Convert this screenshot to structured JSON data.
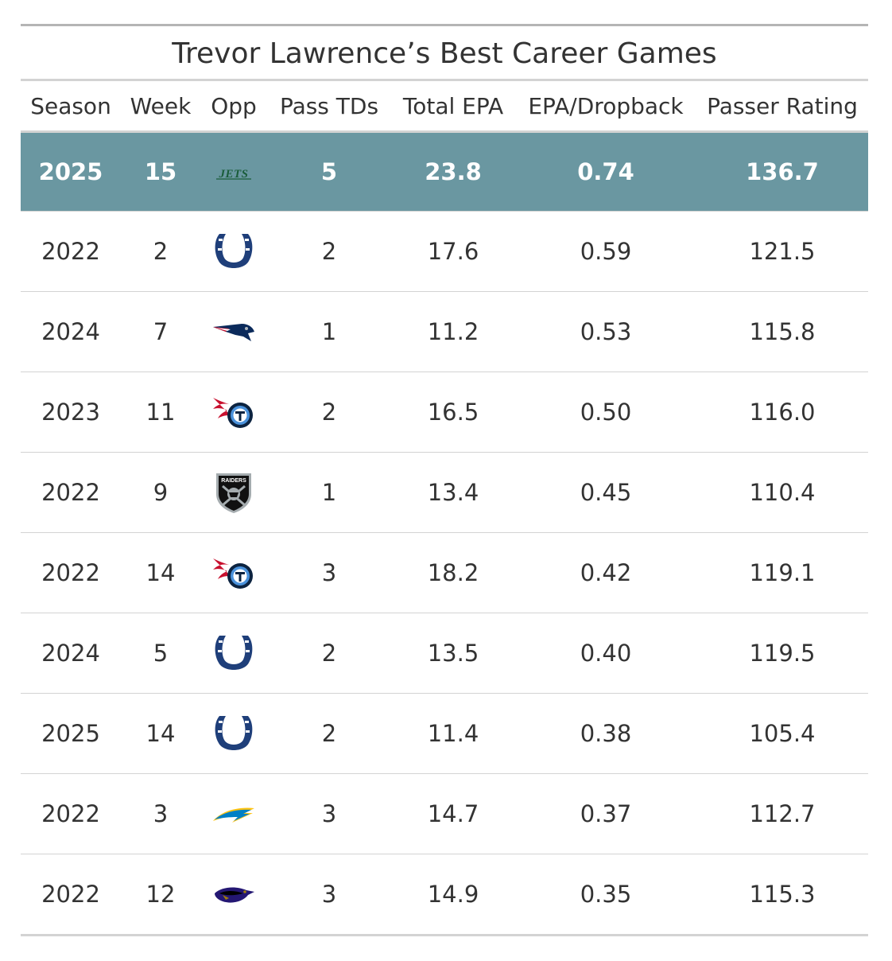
{
  "title": "Trevor Lawrence’s Best Career Games",
  "columns": [
    "Season",
    "Week",
    "Opp",
    "Pass TDs",
    "Total EPA",
    "EPA/Dropback",
    "Passer Rating"
  ],
  "highlight_color": "#6a97a1",
  "rows": [
    {
      "season": "2025",
      "week": "15",
      "opp": "jets-logo",
      "opp_text": "JETS",
      "pass_tds": "5",
      "total_epa": "23.8",
      "epa_dropback": "0.74",
      "passer_rating": "136.7"
    },
    {
      "season": "2022",
      "week": "2",
      "opp": "colts-logo",
      "pass_tds": "2",
      "total_epa": "17.6",
      "epa_dropback": "0.59",
      "passer_rating": "121.5"
    },
    {
      "season": "2024",
      "week": "7",
      "opp": "patriots-logo",
      "pass_tds": "1",
      "total_epa": "11.2",
      "epa_dropback": "0.53",
      "passer_rating": "115.8"
    },
    {
      "season": "2023",
      "week": "11",
      "opp": "titans-logo",
      "pass_tds": "2",
      "total_epa": "16.5",
      "epa_dropback": "0.50",
      "passer_rating": "116.0"
    },
    {
      "season": "2022",
      "week": "9",
      "opp": "raiders-logo",
      "opp_text": "RAIDERS",
      "pass_tds": "1",
      "total_epa": "13.4",
      "epa_dropback": "0.45",
      "passer_rating": "110.4"
    },
    {
      "season": "2022",
      "week": "14",
      "opp": "titans-logo",
      "pass_tds": "3",
      "total_epa": "18.2",
      "epa_dropback": "0.42",
      "passer_rating": "119.1"
    },
    {
      "season": "2024",
      "week": "5",
      "opp": "colts-logo",
      "pass_tds": "2",
      "total_epa": "13.5",
      "epa_dropback": "0.40",
      "passer_rating": "119.5"
    },
    {
      "season": "2025",
      "week": "14",
      "opp": "colts-logo",
      "pass_tds": "2",
      "total_epa": "11.4",
      "epa_dropback": "0.38",
      "passer_rating": "105.4"
    },
    {
      "season": "2022",
      "week": "3",
      "opp": "chargers-logo",
      "pass_tds": "3",
      "total_epa": "14.7",
      "epa_dropback": "0.37",
      "passer_rating": "112.7"
    },
    {
      "season": "2022",
      "week": "12",
      "opp": "ravens-logo",
      "pass_tds": "3",
      "total_epa": "14.9",
      "epa_dropback": "0.35",
      "passer_rating": "115.3"
    }
  ]
}
